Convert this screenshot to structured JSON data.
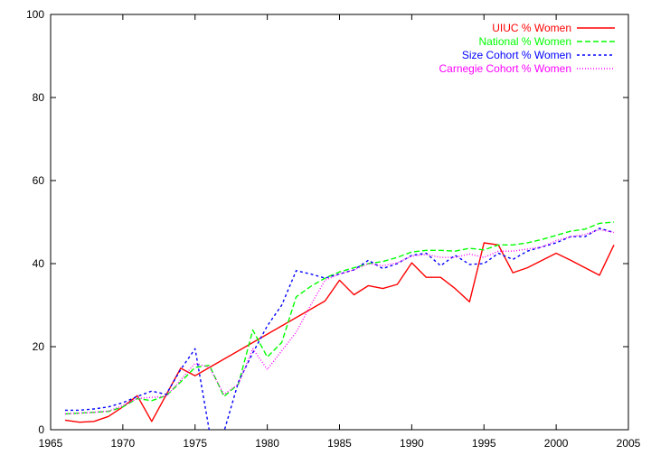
{
  "chart_data": {
    "type": "line",
    "title": "",
    "xlabel": "",
    "ylabel": "",
    "xlim": [
      1965,
      2005
    ],
    "ylim": [
      0,
      100
    ],
    "xticks": [
      1965,
      1970,
      1975,
      1980,
      1985,
      1990,
      1995,
      2000,
      2005
    ],
    "yticks": [
      0,
      20,
      40,
      60,
      80,
      100
    ],
    "grid": false,
    "legend_position": "top-right",
    "series": [
      {
        "name": "UIUC % Women",
        "color": "#ff0000",
        "dash": "solid",
        "points": [
          [
            1966,
            2.3
          ],
          [
            1967,
            1.8
          ],
          [
            1968,
            2.0
          ],
          [
            1969,
            3.2
          ],
          [
            1970,
            5.5
          ],
          [
            1971,
            8.2
          ],
          [
            1972,
            2.0
          ],
          [
            1974,
            14.8
          ],
          [
            1975,
            13.0
          ],
          [
            1976,
            15.0
          ],
          [
            1984,
            31.0
          ],
          [
            1985,
            36.0
          ],
          [
            1986,
            32.5
          ],
          [
            1987,
            34.7
          ],
          [
            1988,
            34.0
          ],
          [
            1989,
            35.0
          ],
          [
            1990,
            40.2
          ],
          [
            1991,
            36.7
          ],
          [
            1992,
            36.7
          ],
          [
            1993,
            34.0
          ],
          [
            1994,
            30.8
          ],
          [
            1995,
            45.0
          ],
          [
            1996,
            44.5
          ],
          [
            1997,
            37.8
          ],
          [
            1998,
            39.0
          ],
          [
            2000,
            42.5
          ],
          [
            2001,
            40.8
          ],
          [
            2003,
            37.2
          ],
          [
            2004,
            44.5
          ]
        ]
      },
      {
        "name": "National % Women",
        "color": "#00ff00",
        "dash": "dashed",
        "points": [
          [
            1966,
            3.8
          ],
          [
            1967,
            4.0
          ],
          [
            1968,
            4.2
          ],
          [
            1969,
            4.4
          ],
          [
            1970,
            5.5
          ],
          [
            1971,
            7.5
          ],
          [
            1972,
            7.0
          ],
          [
            1973,
            8.2
          ],
          [
            1974,
            11.5
          ],
          [
            1975,
            15.0
          ],
          [
            1976,
            15.5
          ],
          [
            1977,
            8.0
          ],
          [
            1978,
            11.0
          ],
          [
            1979,
            24.0
          ],
          [
            1980,
            17.5
          ],
          [
            1981,
            21.0
          ],
          [
            1982,
            32.0
          ],
          [
            1983,
            34.5
          ],
          [
            1984,
            36.5
          ],
          [
            1985,
            38.0
          ],
          [
            1986,
            39.0
          ],
          [
            1987,
            40.0
          ],
          [
            1988,
            40.5
          ],
          [
            1989,
            41.5
          ],
          [
            1990,
            42.8
          ],
          [
            1991,
            43.2
          ],
          [
            1992,
            43.2
          ],
          [
            1993,
            43.0
          ],
          [
            1994,
            43.7
          ],
          [
            1995,
            43.3
          ],
          [
            1996,
            44.5
          ],
          [
            1997,
            44.5
          ],
          [
            1998,
            45.0
          ],
          [
            1999,
            45.8
          ],
          [
            2000,
            46.8
          ],
          [
            2001,
            47.8
          ],
          [
            2002,
            48.3
          ],
          [
            2003,
            49.7
          ],
          [
            2004,
            50.0
          ]
        ]
      },
      {
        "name": "Size Cohort % Women",
        "color": "#0000ff",
        "dash": "dotted",
        "points": [
          [
            1966,
            4.7
          ],
          [
            1967,
            4.7
          ],
          [
            1968,
            5.0
          ],
          [
            1969,
            5.5
          ],
          [
            1970,
            6.5
          ],
          [
            1971,
            8.0
          ],
          [
            1972,
            9.3
          ],
          [
            1973,
            8.5
          ],
          [
            1974,
            14.5
          ],
          [
            1975,
            19.5
          ],
          [
            1976,
            -0.5
          ],
          [
            1977,
            -0.5
          ],
          [
            1978,
            11.5
          ],
          [
            1979,
            18.5
          ],
          [
            1980,
            25.0
          ],
          [
            1981,
            30.0
          ],
          [
            1982,
            38.3
          ],
          [
            1983,
            37.5
          ],
          [
            1984,
            36.5
          ],
          [
            1985,
            37.5
          ],
          [
            1986,
            38.5
          ],
          [
            1987,
            40.8
          ],
          [
            1988,
            38.8
          ],
          [
            1989,
            40.0
          ],
          [
            1990,
            42.0
          ],
          [
            1991,
            42.5
          ],
          [
            1992,
            39.5
          ],
          [
            1993,
            42.0
          ],
          [
            1994,
            39.8
          ],
          [
            1995,
            40.0
          ],
          [
            1996,
            42.5
          ],
          [
            1997,
            41.0
          ],
          [
            1998,
            43.0
          ],
          [
            1999,
            44.0
          ],
          [
            2000,
            45.0
          ],
          [
            2001,
            46.5
          ],
          [
            2002,
            46.5
          ],
          [
            2003,
            48.5
          ],
          [
            2004,
            47.5
          ]
        ]
      },
      {
        "name": "Carnegie Cohort % Women",
        "color": "#ff00ff",
        "dash": "fine-dotted",
        "points": [
          [
            1966,
            3.8
          ],
          [
            1967,
            4.0
          ],
          [
            1968,
            4.2
          ],
          [
            1969,
            4.5
          ],
          [
            1970,
            5.8
          ],
          [
            1971,
            7.5
          ],
          [
            1972,
            7.8
          ],
          [
            1973,
            8.0
          ],
          [
            1974,
            12.0
          ],
          [
            1975,
            16.0
          ],
          [
            1976,
            15.0
          ],
          [
            1977,
            8.5
          ],
          [
            1978,
            11.0
          ],
          [
            1979,
            19.5
          ],
          [
            1980,
            14.5
          ],
          [
            1981,
            19.0
          ],
          [
            1982,
            23.5
          ],
          [
            1983,
            30.0
          ],
          [
            1984,
            36.0
          ],
          [
            1985,
            37.5
          ],
          [
            1986,
            38.5
          ],
          [
            1987,
            40.0
          ],
          [
            1988,
            39.5
          ],
          [
            1989,
            40.2
          ],
          [
            1990,
            41.8
          ],
          [
            1991,
            42.2
          ],
          [
            1992,
            41.5
          ],
          [
            1993,
            41.5
          ],
          [
            1994,
            42.3
          ],
          [
            1995,
            41.5
          ],
          [
            1996,
            43.0
          ],
          [
            1997,
            43.0
          ],
          [
            1998,
            43.5
          ],
          [
            1999,
            44.0
          ],
          [
            2000,
            45.5
          ],
          [
            2001,
            46.5
          ],
          [
            2002,
            47.0
          ],
          [
            2003,
            48.2
          ],
          [
            2004,
            47.5
          ]
        ]
      }
    ]
  }
}
